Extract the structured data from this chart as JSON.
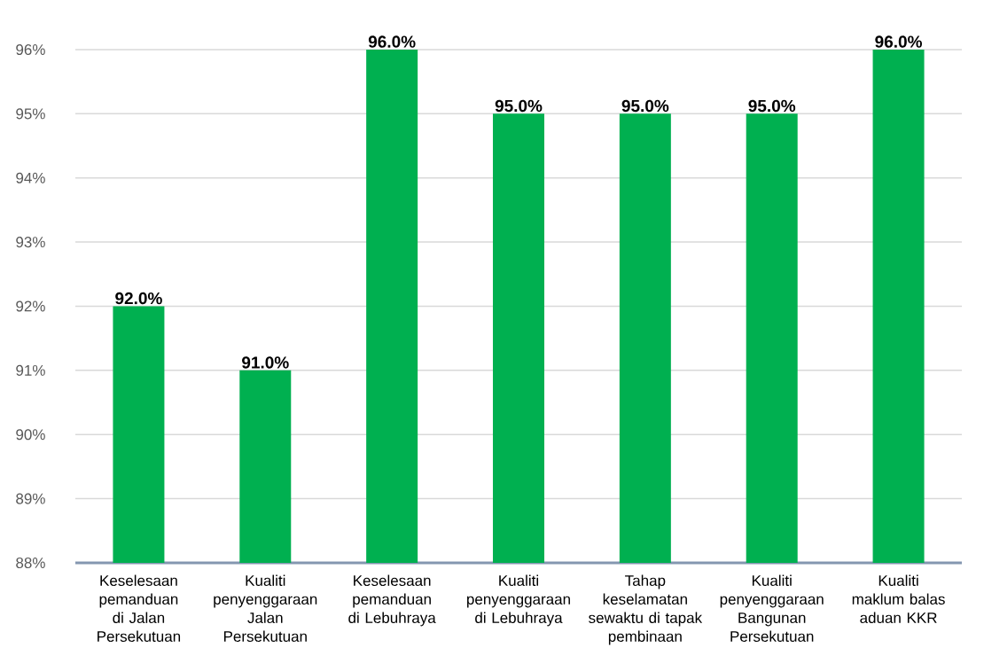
{
  "chart_data": {
    "type": "bar",
    "categories": [
      "Keselesaan pemanduan di Jalan Persekutuan",
      "Kualiti penyenggaraan Jalan Persekutuan",
      "Keselesaan pemanduan di Lebuhraya",
      "Kualiti penyenggaraan di Lebuhraya",
      "Tahap keselamatan sewaktu di tapak pembinaan",
      "Kualiti penyenggaraan Bangunan Persekutuan",
      "Kualiti maklum balas aduan KKR"
    ],
    "values": [
      92,
      91,
      96,
      95,
      95,
      95,
      96
    ],
    "color": "#00b050",
    "ylim": [
      88,
      96
    ],
    "yticks": [
      {
        "value": 88,
        "label": "88%"
      },
      {
        "value": 89,
        "label": "89%"
      },
      {
        "value": 90,
        "label": "90%"
      },
      {
        "value": 91,
        "label": "91%"
      },
      {
        "value": 92,
        "label": "92%"
      },
      {
        "value": 93,
        "label": "93%"
      },
      {
        "value": 94,
        "label": "94%"
      },
      {
        "value": 95,
        "label": "95%"
      },
      {
        "value": 96,
        "label": "96%"
      }
    ],
    "grid": "y",
    "value_labels": [
      "92.0%",
      "91.0%",
      "96.0%",
      "95.0%",
      "95.0%",
      "95.0%",
      "96.0%"
    ]
  }
}
